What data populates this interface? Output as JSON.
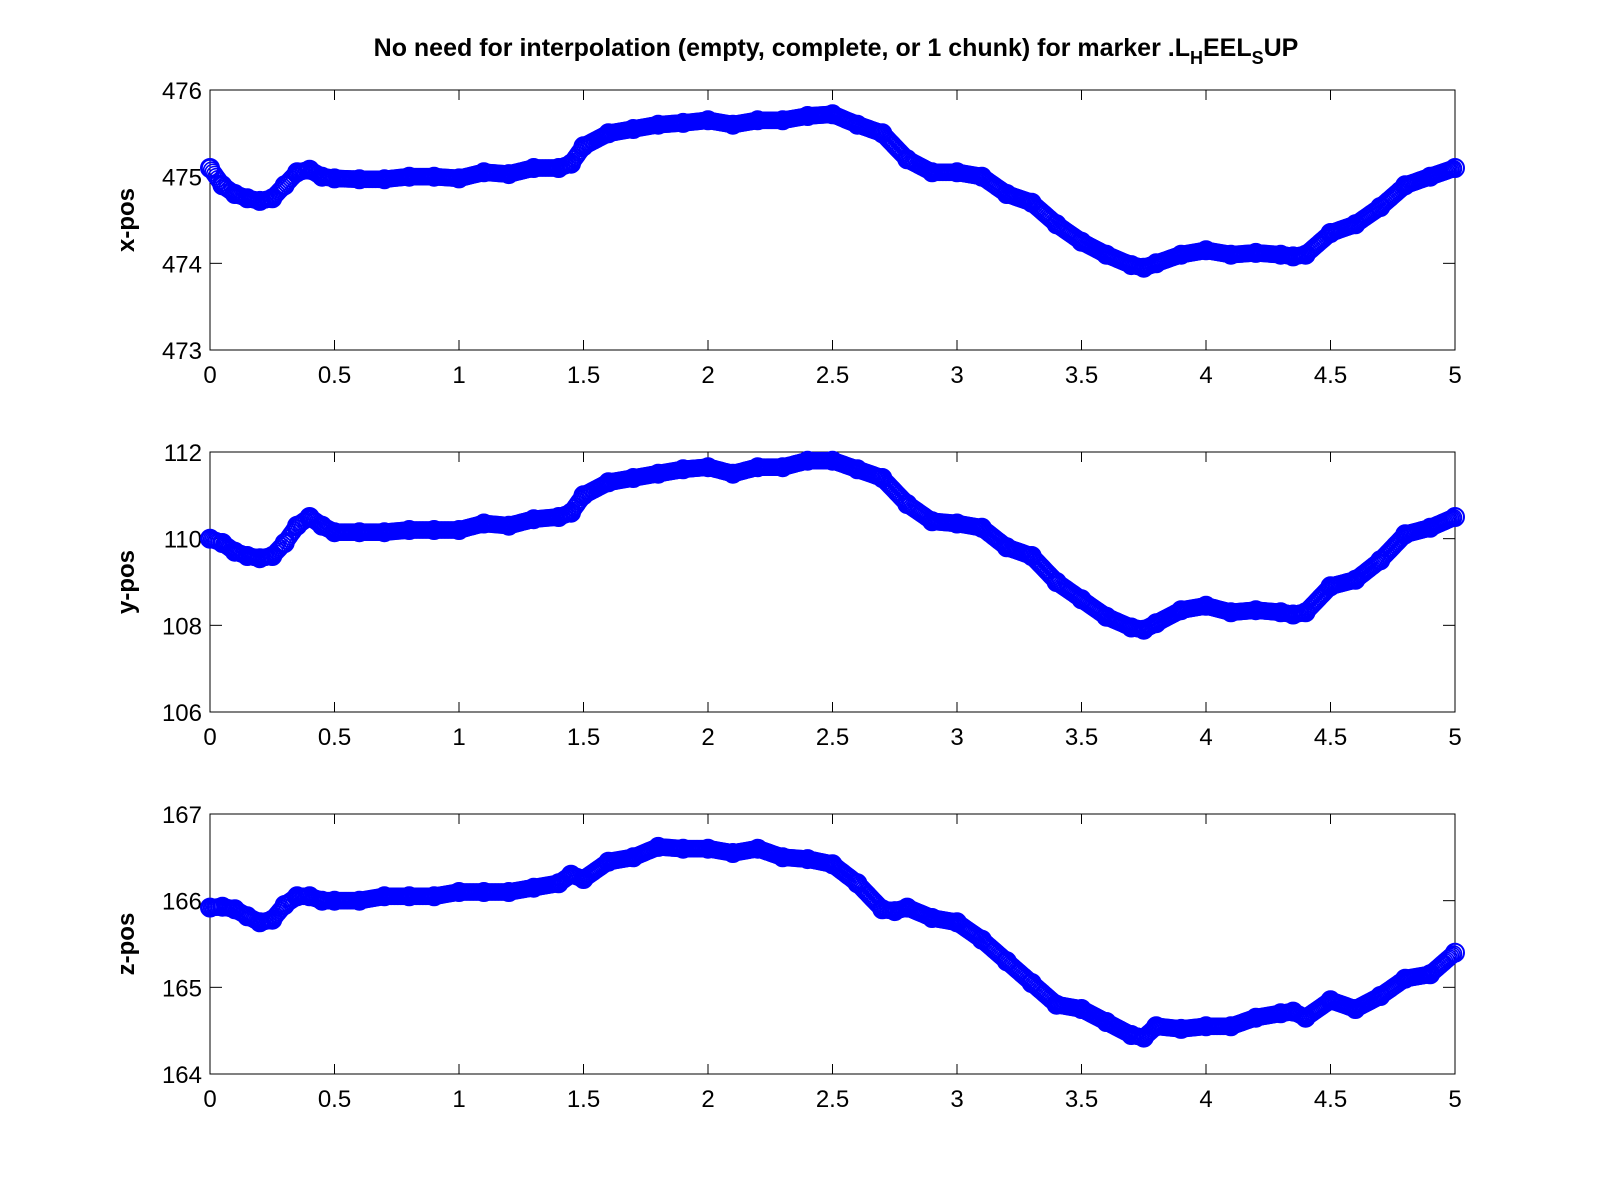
{
  "title": {
    "prefix": "No need for interpolation (empty, complete, or 1 chunk) for marker .L",
    "sub1": "H",
    "mid": "EEL",
    "sub2": "S",
    "suffix": "UP"
  },
  "colors": {
    "series": "#0000ff"
  },
  "chart_data": [
    {
      "type": "scatter",
      "ylabel": "x-pos",
      "xlim": [
        0,
        5
      ],
      "ylim": [
        473,
        476
      ],
      "xticks": [
        "0",
        "0.5",
        "1",
        "1.5",
        "2",
        "2.5",
        "3",
        "3.5",
        "4",
        "4.5",
        "5"
      ],
      "yticks": [
        "473",
        "474",
        "475",
        "476"
      ],
      "grid": false,
      "marker": "circle",
      "x": [
        0,
        0.05,
        0.1,
        0.15,
        0.2,
        0.25,
        0.3,
        0.35,
        0.4,
        0.45,
        0.5,
        0.6,
        0.7,
        0.8,
        0.9,
        1.0,
        1.1,
        1.2,
        1.3,
        1.4,
        1.45,
        1.5,
        1.6,
        1.7,
        1.8,
        1.9,
        2.0,
        2.1,
        2.2,
        2.3,
        2.4,
        2.5,
        2.6,
        2.7,
        2.8,
        2.9,
        3.0,
        3.1,
        3.2,
        3.3,
        3.4,
        3.5,
        3.6,
        3.7,
        3.75,
        3.8,
        3.9,
        4.0,
        4.1,
        4.2,
        4.3,
        4.35,
        4.4,
        4.5,
        4.6,
        4.7,
        4.8,
        4.9,
        5.0
      ],
      "y": [
        475.1,
        474.9,
        474.8,
        474.75,
        474.72,
        474.75,
        474.9,
        475.05,
        475.08,
        475.0,
        474.98,
        474.97,
        474.97,
        475.0,
        475.0,
        474.98,
        475.05,
        475.03,
        475.1,
        475.1,
        475.15,
        475.35,
        475.5,
        475.55,
        475.6,
        475.62,
        475.65,
        475.6,
        475.65,
        475.65,
        475.7,
        475.72,
        475.6,
        475.5,
        475.2,
        475.05,
        475.05,
        475.0,
        474.8,
        474.7,
        474.45,
        474.25,
        474.1,
        473.98,
        473.95,
        474.0,
        474.1,
        474.15,
        474.1,
        474.12,
        474.1,
        474.08,
        474.1,
        474.35,
        474.45,
        474.65,
        474.9,
        475.0,
        475.1
      ]
    },
    {
      "type": "scatter",
      "ylabel": "y-pos",
      "xlim": [
        0,
        5
      ],
      "ylim": [
        106,
        112
      ],
      "xticks": [
        "0",
        "0.5",
        "1",
        "1.5",
        "2",
        "2.5",
        "3",
        "3.5",
        "4",
        "4.5",
        "5"
      ],
      "yticks": [
        "106",
        "108",
        "110",
        "112"
      ],
      "grid": false,
      "marker": "circle",
      "x": [
        0,
        0.05,
        0.1,
        0.15,
        0.2,
        0.25,
        0.3,
        0.35,
        0.4,
        0.45,
        0.5,
        0.6,
        0.7,
        0.8,
        0.9,
        1.0,
        1.1,
        1.2,
        1.3,
        1.4,
        1.45,
        1.5,
        1.6,
        1.7,
        1.8,
        1.9,
        2.0,
        2.1,
        2.2,
        2.3,
        2.4,
        2.5,
        2.6,
        2.7,
        2.8,
        2.9,
        3.0,
        3.1,
        3.2,
        3.3,
        3.4,
        3.5,
        3.6,
        3.7,
        3.75,
        3.8,
        3.9,
        4.0,
        4.1,
        4.2,
        4.3,
        4.35,
        4.4,
        4.5,
        4.6,
        4.7,
        4.8,
        4.9,
        5.0
      ],
      "y": [
        110.0,
        109.9,
        109.7,
        109.6,
        109.55,
        109.6,
        109.9,
        110.3,
        110.5,
        110.3,
        110.15,
        110.15,
        110.15,
        110.2,
        110.2,
        110.2,
        110.35,
        110.3,
        110.45,
        110.5,
        110.6,
        111.0,
        111.3,
        111.4,
        111.5,
        111.6,
        111.65,
        111.5,
        111.65,
        111.65,
        111.8,
        111.8,
        111.6,
        111.4,
        110.8,
        110.4,
        110.35,
        110.25,
        109.8,
        109.6,
        109.0,
        108.6,
        108.2,
        107.95,
        107.9,
        108.05,
        108.35,
        108.45,
        108.3,
        108.35,
        108.3,
        108.25,
        108.3,
        108.9,
        109.05,
        109.5,
        110.1,
        110.25,
        110.5
      ]
    },
    {
      "type": "scatter",
      "ylabel": "z-pos",
      "xlim": [
        0,
        5
      ],
      "ylim": [
        164,
        167
      ],
      "xticks": [
        "0",
        "0.5",
        "1",
        "1.5",
        "2",
        "2.5",
        "3",
        "3.5",
        "4",
        "4.5",
        "5"
      ],
      "yticks": [
        "164",
        "165",
        "166",
        "167"
      ],
      "grid": false,
      "marker": "circle",
      "x": [
        0,
        0.05,
        0.1,
        0.15,
        0.2,
        0.25,
        0.3,
        0.35,
        0.4,
        0.45,
        0.5,
        0.6,
        0.7,
        0.8,
        0.9,
        1.0,
        1.1,
        1.2,
        1.3,
        1.4,
        1.45,
        1.5,
        1.6,
        1.7,
        1.8,
        1.9,
        2.0,
        2.1,
        2.2,
        2.3,
        2.4,
        2.5,
        2.6,
        2.7,
        2.75,
        2.8,
        2.9,
        3.0,
        3.1,
        3.2,
        3.3,
        3.4,
        3.5,
        3.6,
        3.7,
        3.75,
        3.8,
        3.9,
        4.0,
        4.1,
        4.2,
        4.3,
        4.35,
        4.4,
        4.5,
        4.6,
        4.7,
        4.8,
        4.9,
        5.0
      ],
      "y": [
        165.92,
        165.93,
        165.9,
        165.82,
        165.75,
        165.78,
        165.95,
        166.05,
        166.05,
        166.0,
        166.0,
        166.0,
        166.05,
        166.05,
        166.05,
        166.1,
        166.1,
        166.1,
        166.15,
        166.2,
        166.3,
        166.25,
        166.45,
        166.5,
        166.62,
        166.6,
        166.6,
        166.55,
        166.6,
        166.5,
        166.48,
        166.42,
        166.2,
        165.9,
        165.88,
        165.92,
        165.8,
        165.75,
        165.55,
        165.3,
        165.05,
        164.8,
        164.75,
        164.6,
        164.45,
        164.42,
        164.55,
        164.52,
        164.55,
        164.55,
        164.65,
        164.7,
        164.72,
        164.65,
        164.85,
        164.75,
        164.9,
        165.1,
        165.15,
        165.4
      ]
    }
  ]
}
